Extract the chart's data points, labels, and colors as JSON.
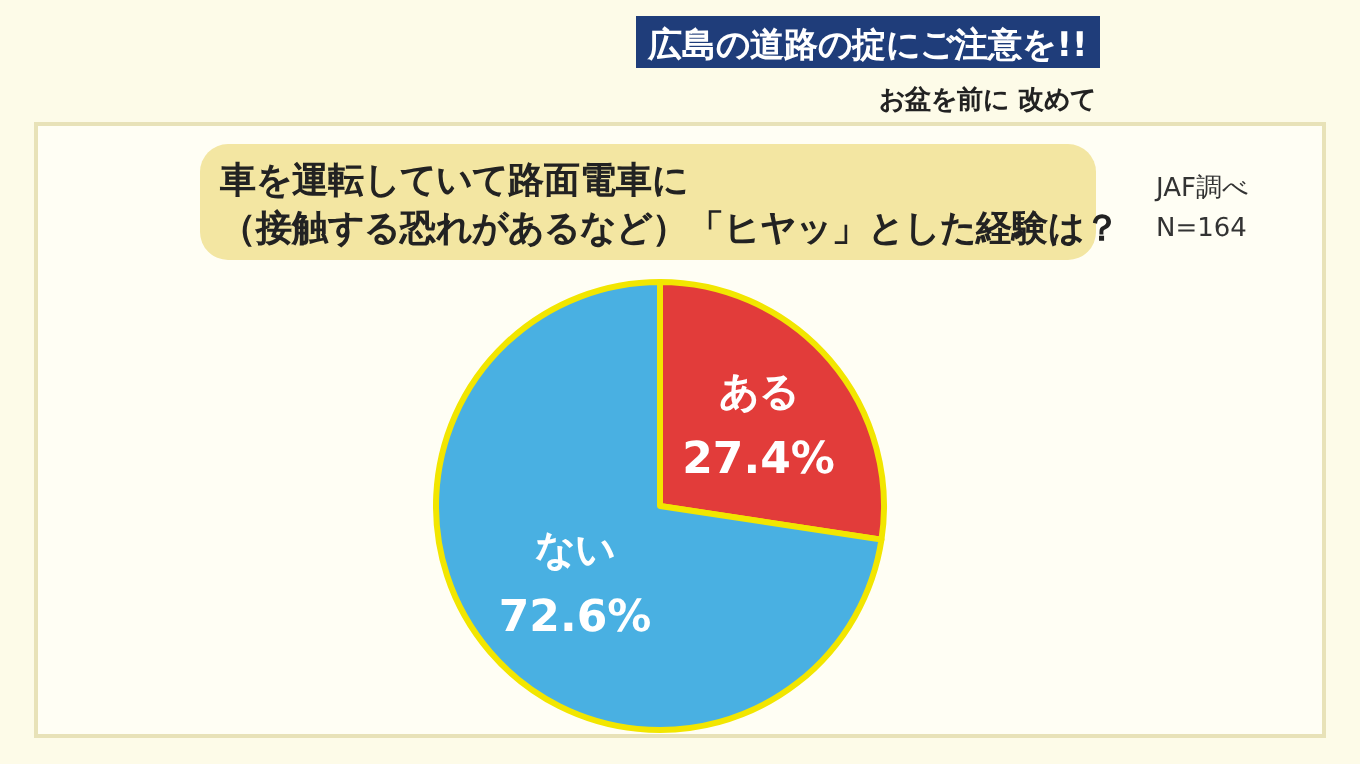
{
  "chart_data": {
    "type": "pie",
    "title": "車を運転していて路面電車に（接触する恐れがあるなど）「ヒヤッ」とした経験は？",
    "categories": [
      "ある",
      "ない"
    ],
    "values": [
      27.4,
      72.6
    ],
    "colors": [
      "#e23c3a",
      "#49b0e2"
    ],
    "value_labels": [
      "27.4%",
      "72.6%"
    ],
    "annotations": [
      "広島の道路の掟にご注意を!!",
      "お盆を前に 改めて",
      "JAF調べ",
      "N=164"
    ]
  }
}
